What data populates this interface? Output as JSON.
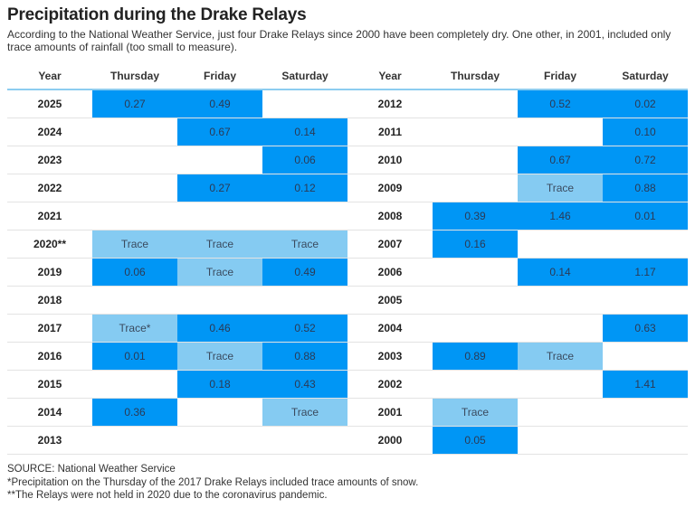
{
  "title": "Precipitation during the Drake Relays",
  "subtitle": "According to the National Weather Service, just four Drake Relays since 2000 have been completely dry. One other, in 2001, included only trace amounts of rainfall (too small to measure).",
  "headers": [
    "Year",
    "Thursday",
    "Friday",
    "Saturday",
    "Year",
    "Thursday",
    "Friday",
    "Saturday"
  ],
  "colors": {
    "measurable": "#0096f5",
    "trace": "#85cbf2",
    "none": "#ffffff"
  },
  "footer": {
    "source": "SOURCE: National Weather Service",
    "note1": "*Precipitation on the Thursday of the 2017 Drake Relays included trace amounts of snow.",
    "note2": "**The Relays were not held in 2020 due to the coronavirus pandemic."
  },
  "chart_data": {
    "type": "table",
    "title": "Precipitation during the Drake Relays",
    "columns": [
      "Year",
      "Thursday",
      "Friday",
      "Saturday"
    ],
    "units": "inches",
    "left_rows": [
      {
        "year": "2025",
        "thu": "0.27",
        "fri": "0.49",
        "sat": ""
      },
      {
        "year": "2024",
        "thu": "",
        "fri": "0.67",
        "sat": "0.14"
      },
      {
        "year": "2023",
        "thu": "",
        "fri": "",
        "sat": "0.06"
      },
      {
        "year": "2022",
        "thu": "",
        "fri": "0.27",
        "sat": "0.12"
      },
      {
        "year": "2021",
        "thu": "",
        "fri": "",
        "sat": ""
      },
      {
        "year": "2020**",
        "thu": "Trace",
        "fri": "Trace",
        "sat": "Trace"
      },
      {
        "year": "2019",
        "thu": "0.06",
        "fri": "Trace",
        "sat": "0.49"
      },
      {
        "year": "2018",
        "thu": "",
        "fri": "",
        "sat": ""
      },
      {
        "year": "2017",
        "thu": "Trace*",
        "fri": "0.46",
        "sat": "0.52"
      },
      {
        "year": "2016",
        "thu": "0.01",
        "fri": "Trace",
        "sat": "0.88"
      },
      {
        "year": "2015",
        "thu": "",
        "fri": "0.18",
        "sat": "0.43"
      },
      {
        "year": "2014",
        "thu": "0.36",
        "fri": "",
        "sat": "Trace"
      },
      {
        "year": "2013",
        "thu": "",
        "fri": "",
        "sat": ""
      }
    ],
    "right_rows": [
      {
        "year": "2012",
        "thu": "",
        "fri": "0.52",
        "sat": "0.02"
      },
      {
        "year": "2011",
        "thu": "",
        "fri": "",
        "sat": "0.10"
      },
      {
        "year": "2010",
        "thu": "",
        "fri": "0.67",
        "sat": "0.72"
      },
      {
        "year": "2009",
        "thu": "",
        "fri": "Trace",
        "sat": "0.88"
      },
      {
        "year": "2008",
        "thu": "0.39",
        "fri": "1.46",
        "sat": "0.01"
      },
      {
        "year": "2007",
        "thu": "0.16",
        "fri": "",
        "sat": ""
      },
      {
        "year": "2006",
        "thu": "",
        "fri": "0.14",
        "sat": "1.17"
      },
      {
        "year": "2005",
        "thu": "",
        "fri": "",
        "sat": ""
      },
      {
        "year": "2004",
        "thu": "",
        "fri": "",
        "sat": "0.63"
      },
      {
        "year": "2003",
        "thu": "0.89",
        "fri": "Trace",
        "sat": ""
      },
      {
        "year": "2002",
        "thu": "",
        "fri": "",
        "sat": "1.41"
      },
      {
        "year": "2001",
        "thu": "Trace",
        "fri": "",
        "sat": ""
      },
      {
        "year": "2000",
        "thu": "0.05",
        "fri": "",
        "sat": ""
      }
    ]
  }
}
